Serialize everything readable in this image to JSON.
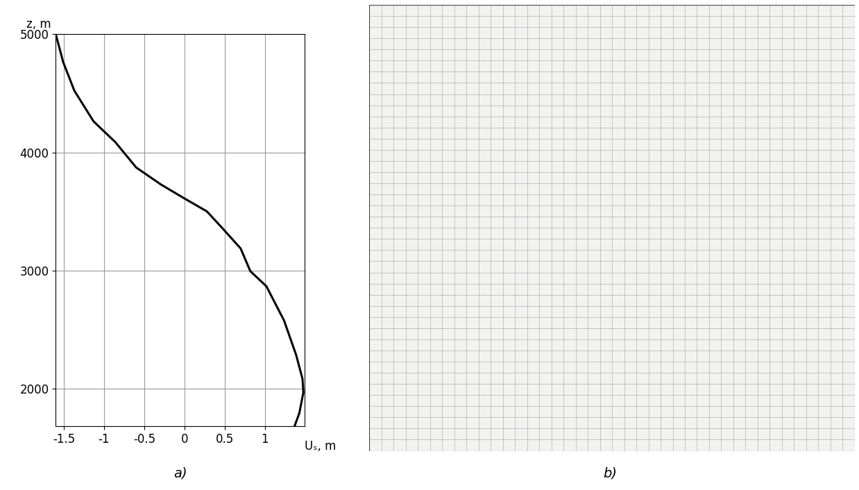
{
  "chart_data": {
    "type": "line",
    "x_label": "Uₛ, m",
    "y_label": "z, m",
    "panel_label": "a)",
    "x": [
      -1.6,
      -1.51,
      -1.37,
      -1.13,
      -0.86,
      -0.6,
      -0.29,
      0.0,
      0.28,
      0.47,
      0.7,
      0.82,
      1.02,
      1.24,
      1.39,
      1.47,
      1.48,
      1.43,
      1.37
    ],
    "series": [
      {
        "name": "Uₛ",
        "color": "#000000",
        "line_style": "solid",
        "values": [
          5000,
          4767,
          4523,
          4262,
          4087,
          3872,
          3727,
          3610,
          3500,
          3360,
          3186,
          2994,
          2866,
          2576,
          2285,
          2081,
          1965,
          1791,
          1680
        ]
      }
    ],
    "xlim": [
      -1.6,
      1.5
    ],
    "xticks": [
      -1.5,
      -1,
      -0.5,
      0,
      0.5,
      1
    ],
    "ylim": [
      1680,
      5000
    ],
    "yticks": [
      2000,
      3000,
      4000,
      5000
    ],
    "grid": true
  },
  "panel_b": {
    "label": "b)"
  }
}
